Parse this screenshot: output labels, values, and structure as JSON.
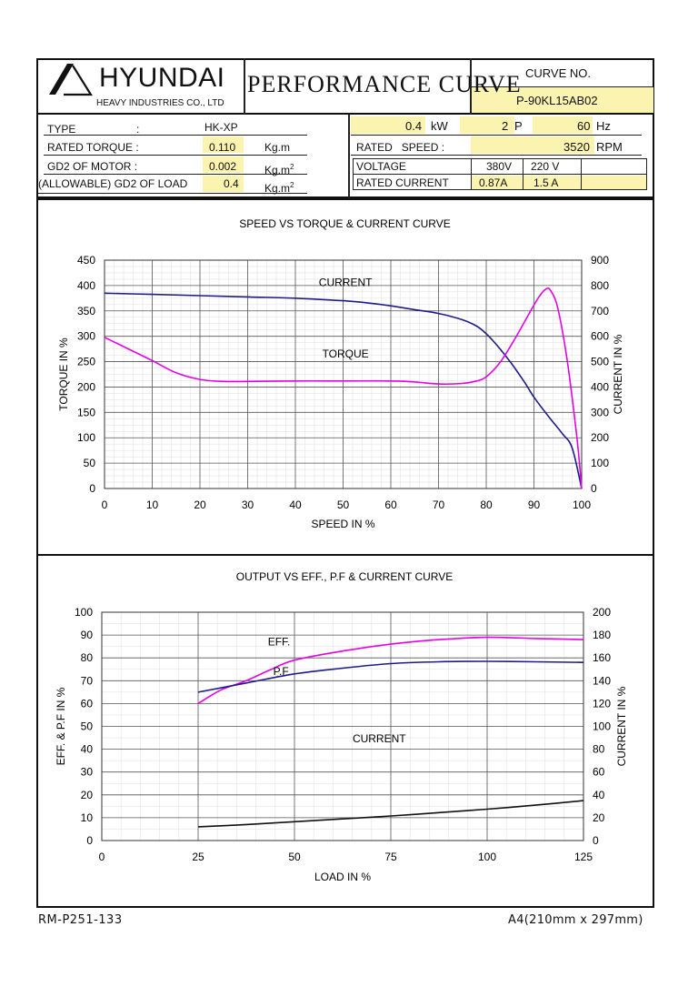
{
  "header": {
    "brand": "HYUNDAI",
    "company": "HEAVY INDUSTRIES CO., LTD",
    "title": "PERFORMANCE CURVE",
    "curve_no_label": "CURVE NO.",
    "curve_no": "P-90KL15AB02"
  },
  "specs": {
    "type_label": "TYPE",
    "type_colon": ":",
    "type_value": "HK-XP",
    "rated_torque_label": "RATED TORQUE :",
    "rated_torque_value": "0.110",
    "rated_torque_unit": "Kg.m",
    "gd2_motor_label": "GD2 OF MOTOR :",
    "gd2_motor_value": "0.002",
    "gd2_motor_unit": "Kg.m",
    "gd2_load_label": "(ALLOWABLE) GD2 OF LOAD",
    "gd2_load_value": "0.4",
    "gd2_load_unit": "Kg.m",
    "unit_sup": "2",
    "power_value": "0.4",
    "power_unit": "kW",
    "poles_value": "2",
    "poles_unit": "P",
    "freq_value": "60",
    "freq_unit": "Hz",
    "rated_speed_label": "RATED   SPEED :",
    "rated_speed_value": "3520",
    "rated_speed_unit": "RPM",
    "voltage_label": "VOLTAGE",
    "voltage_1": "380V",
    "voltage_2": "220 V",
    "current_label": "RATED CURRENT",
    "current_1": "0.87A",
    "current_2": "1.5 A"
  },
  "footer": {
    "doc_no": "RM-P251-133",
    "paper": "A4(210mm x 297mm)"
  },
  "chart_data": [
    {
      "type": "line",
      "title": "SPEED VS TORQUE & CURRENT CURVE",
      "xlabel": "SPEED IN %",
      "ylabel_left": "TORQUE IN %",
      "ylabel_right": "CURRENT IN %",
      "xlim": [
        0,
        100
      ],
      "ylim_left": [
        0,
        450
      ],
      "ylim_right": [
        0,
        900
      ],
      "x_ticks": [
        0,
        10,
        20,
        30,
        40,
        50,
        60,
        70,
        80,
        90,
        100
      ],
      "y_ticks_left": [
        0,
        50,
        100,
        150,
        200,
        250,
        300,
        350,
        400,
        450
      ],
      "y_ticks_right": [
        0,
        100,
        200,
        300,
        400,
        500,
        600,
        700,
        800,
        900
      ],
      "grid": true,
      "series": [
        {
          "name": "CURRENT",
          "axis": "right",
          "color": "#1c1c8c",
          "points": [
            [
              0,
              770
            ],
            [
              10,
              765
            ],
            [
              20,
              760
            ],
            [
              30,
              755
            ],
            [
              40,
              750
            ],
            [
              50,
              740
            ],
            [
              55,
              732
            ],
            [
              60,
              720
            ],
            [
              65,
              705
            ],
            [
              70,
              690
            ],
            [
              75,
              665
            ],
            [
              78,
              640
            ],
            [
              80,
              610
            ],
            [
              82,
              570
            ],
            [
              85,
              500
            ],
            [
              88,
              420
            ],
            [
              90,
              360
            ],
            [
              93,
              285
            ],
            [
              96,
              215
            ],
            [
              98,
              160
            ],
            [
              100,
              0
            ]
          ]
        },
        {
          "name": "TORQUE",
          "axis": "left",
          "color": "#e600e6",
          "points": [
            [
              0,
              298
            ],
            [
              5,
              275
            ],
            [
              10,
              252
            ],
            [
              15,
              228
            ],
            [
              20,
              215
            ],
            [
              25,
              211
            ],
            [
              30,
              211
            ],
            [
              40,
              212
            ],
            [
              50,
              212
            ],
            [
              60,
              212
            ],
            [
              65,
              210
            ],
            [
              70,
              206
            ],
            [
              75,
              207
            ],
            [
              78,
              212
            ],
            [
              80,
              220
            ],
            [
              83,
              250
            ],
            [
              86,
              295
            ],
            [
              89,
              345
            ],
            [
              91,
              377
            ],
            [
              92.5,
              393
            ],
            [
              93.5,
              390
            ],
            [
              95,
              355
            ],
            [
              97,
              250
            ],
            [
              99,
              100
            ],
            [
              100,
              0
            ]
          ]
        }
      ],
      "annotations": [
        "CURRENT",
        "TORQUE"
      ]
    },
    {
      "type": "line",
      "title": "OUTPUT VS EFF., P.F & CURRENT CURVE",
      "xlabel": "LOAD IN %",
      "ylabel_left": "EFF. & P.F IN %",
      "ylabel_right": "CURRENT IN %",
      "xlim": [
        0,
        125
      ],
      "ylim_left": [
        0,
        100
      ],
      "ylim_right": [
        0,
        200
      ],
      "x_ticks": [
        0,
        25,
        50,
        75,
        100,
        125
      ],
      "y_ticks_left": [
        0,
        10,
        20,
        30,
        40,
        50,
        60,
        70,
        80,
        90,
        100
      ],
      "y_ticks_right": [
        0,
        20,
        40,
        60,
        80,
        100,
        120,
        140,
        160,
        180,
        200
      ],
      "grid": true,
      "series": [
        {
          "name": "EFF.",
          "axis": "left",
          "color": "#e600e6",
          "points": [
            [
              25,
              60
            ],
            [
              31,
              66
            ],
            [
              37.5,
              70
            ],
            [
              44,
              75
            ],
            [
              50,
              79
            ],
            [
              62.5,
              83
            ],
            [
              75,
              86
            ],
            [
              87.5,
              88
            ],
            [
              100,
              89
            ],
            [
              112.5,
              88.5
            ],
            [
              125,
              88
            ]
          ]
        },
        {
          "name": "P.F",
          "axis": "left",
          "color": "#1c1c8c",
          "points": [
            [
              25,
              65
            ],
            [
              37.5,
              69
            ],
            [
              50,
              73
            ],
            [
              62.5,
              75.5
            ],
            [
              75,
              77.5
            ],
            [
              87.5,
              78.3
            ],
            [
              100,
              78.5
            ],
            [
              112.5,
              78.3
            ],
            [
              125,
              78
            ]
          ]
        },
        {
          "name": "CURRENT",
          "axis": "right",
          "color": "#111111",
          "points": [
            [
              25,
              12
            ],
            [
              37.5,
              14
            ],
            [
              50,
              16.5
            ],
            [
              62.5,
              19
            ],
            [
              75,
              21.5
            ],
            [
              87.5,
              24.5
            ],
            [
              100,
              27.5
            ],
            [
              112.5,
              31
            ],
            [
              125,
              35
            ]
          ]
        }
      ],
      "annotations": [
        "EFF.",
        "P.F",
        "CURRENT"
      ]
    }
  ]
}
